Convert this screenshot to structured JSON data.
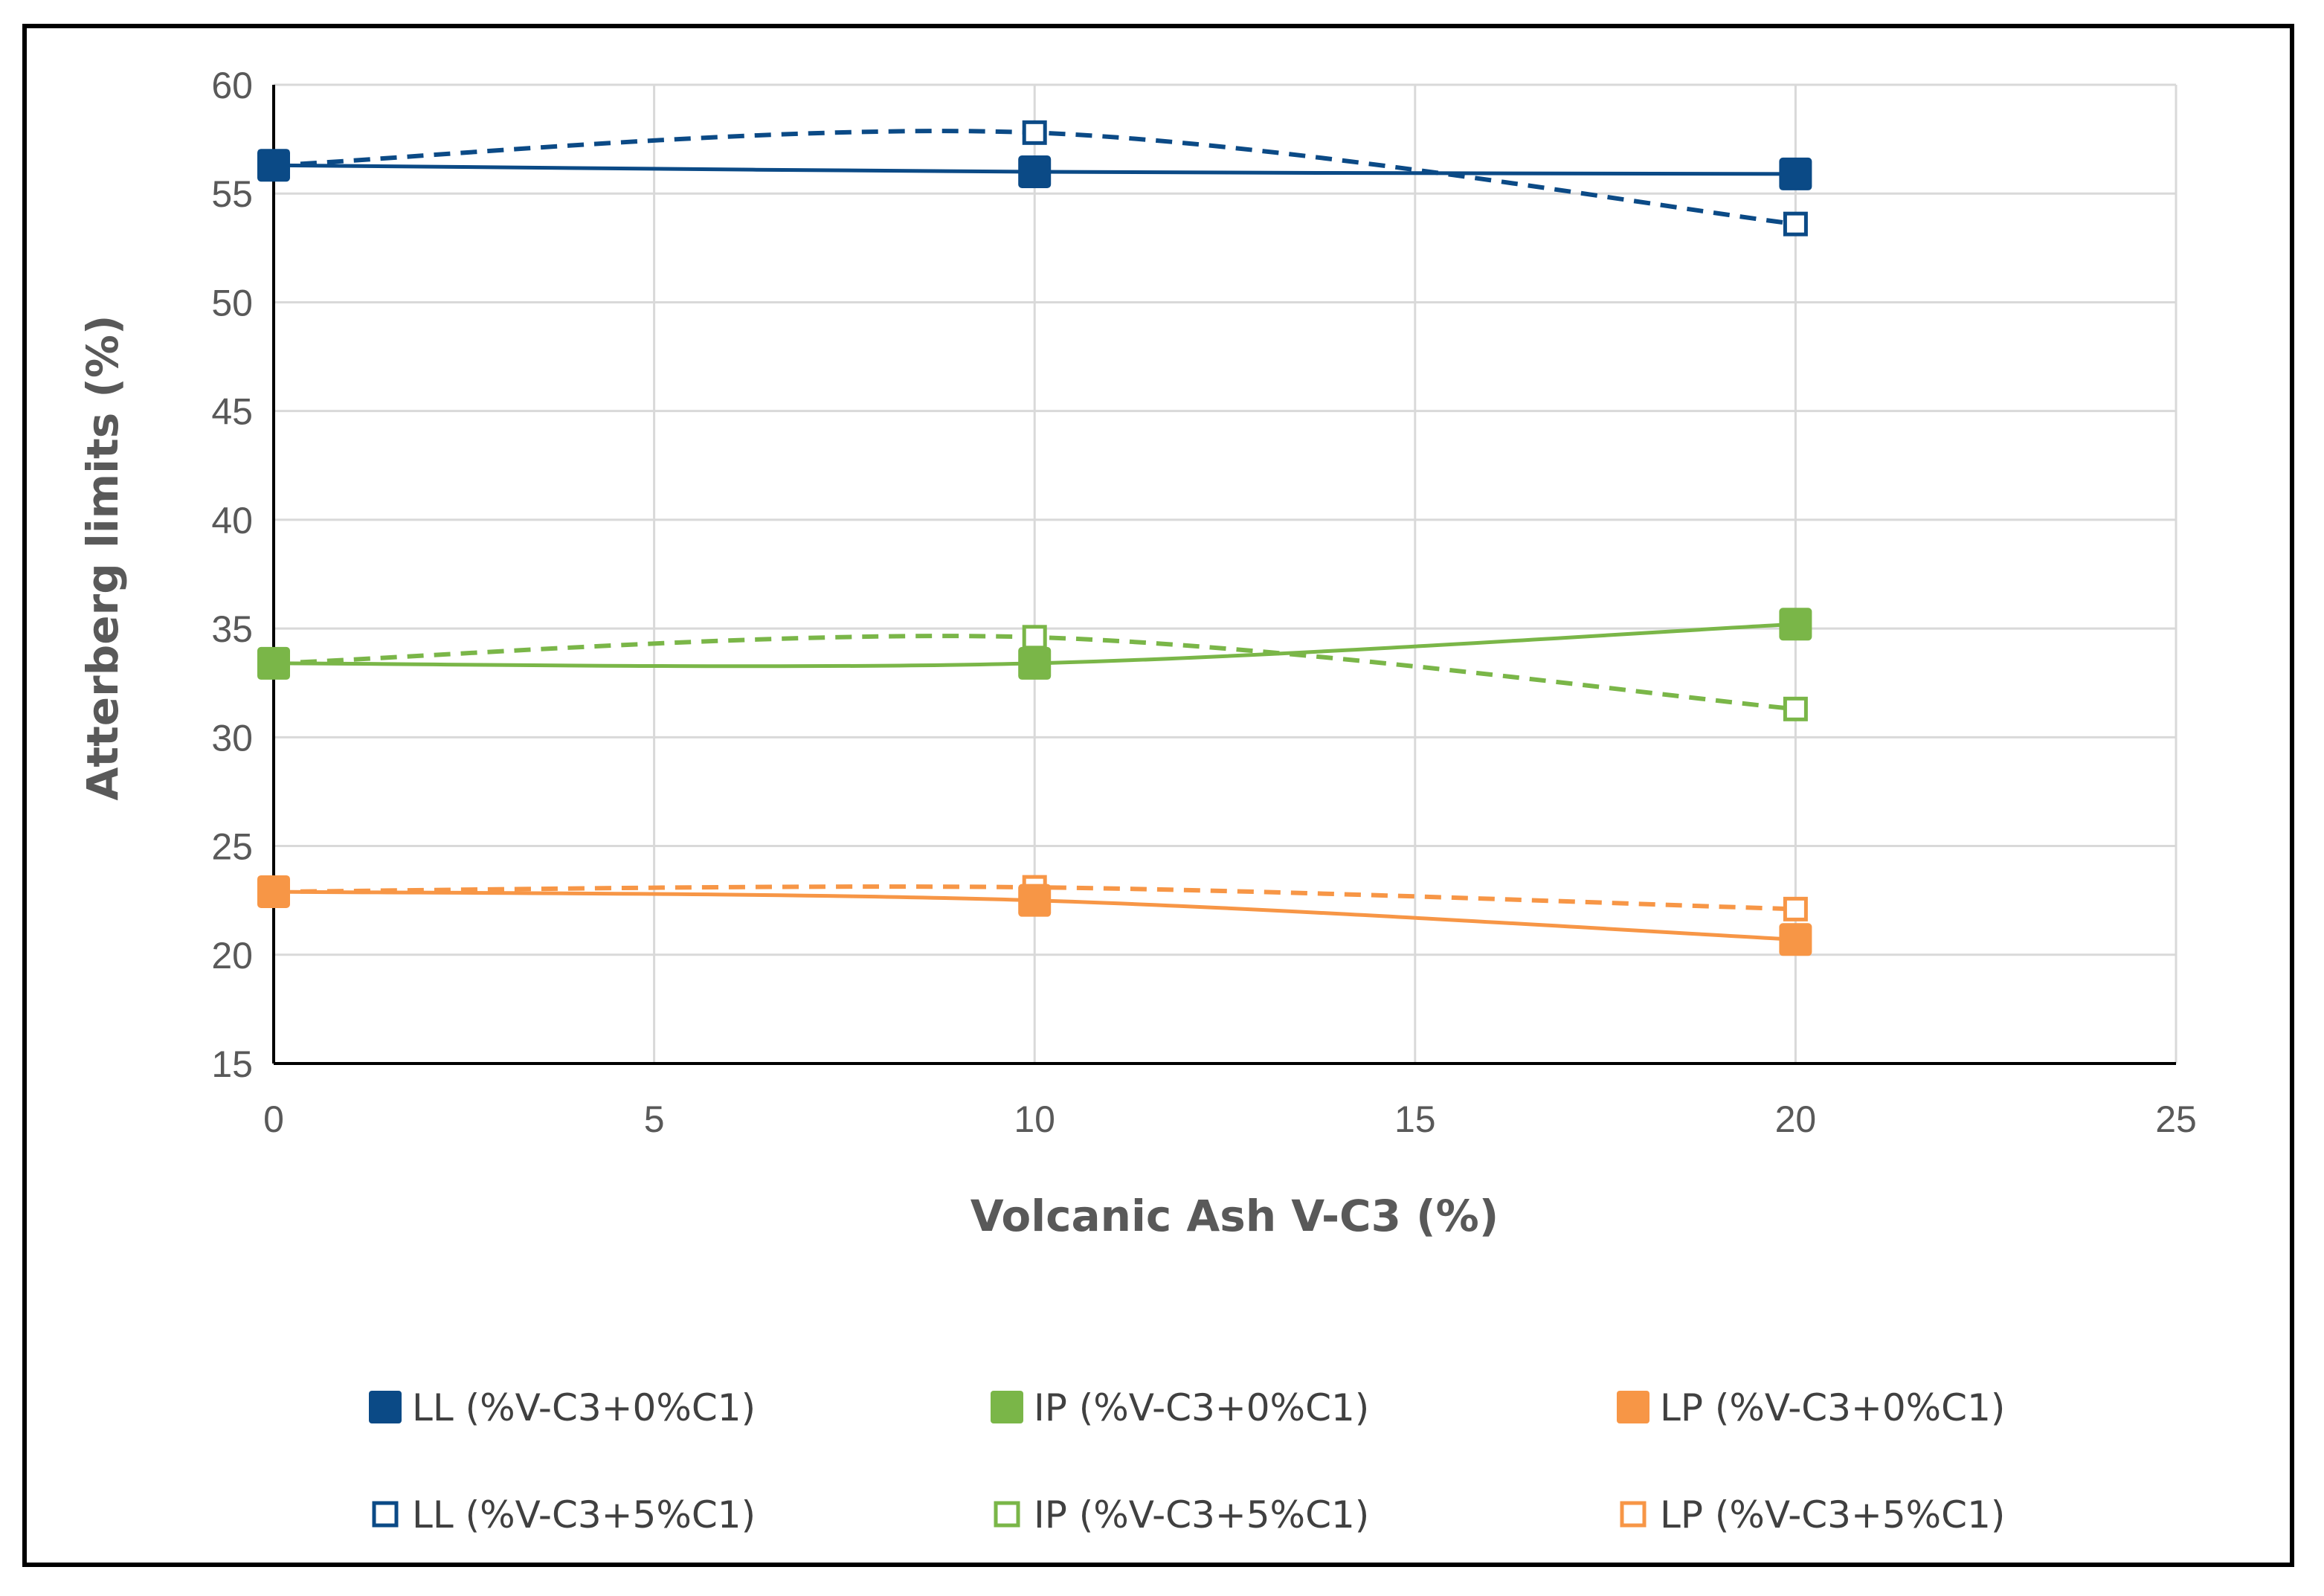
{
  "chart_data": {
    "type": "line",
    "title": "",
    "xlabel": "Volcanic Ash V-C3 (%)",
    "ylabel": "Atterberg limits (%)",
    "xlim": [
      0,
      25
    ],
    "ylim": [
      15,
      60
    ],
    "xticks": [
      0,
      5,
      10,
      15,
      20,
      25
    ],
    "yticks": [
      15,
      20,
      25,
      30,
      35,
      40,
      45,
      50,
      55,
      60
    ],
    "grid": true,
    "legend_position": "bottom",
    "x": [
      0,
      10,
      20
    ],
    "series": [
      {
        "name": "LL  (%V-C3+0%C1)",
        "values": [
          56.3,
          56.0,
          55.9
        ],
        "color": "#0B4A86",
        "dashed": false,
        "filled": true
      },
      {
        "name": "IP  (%V-C3+0%C1)",
        "values": [
          33.4,
          33.4,
          35.2
        ],
        "color": "#7AB648",
        "dashed": false,
        "filled": true
      },
      {
        "name": "LP  (%V-C3+0%C1)",
        "values": [
          22.9,
          22.5,
          20.7
        ],
        "color": "#F79646",
        "dashed": false,
        "filled": true
      },
      {
        "name": "LL  (%V-C3+5%C1)",
        "values": [
          56.3,
          57.8,
          53.6
        ],
        "color": "#0B4A86",
        "dashed": true,
        "filled": false
      },
      {
        "name": "IP (%V-C3+5%C1)",
        "values": [
          33.4,
          34.6,
          31.3
        ],
        "color": "#7AB648",
        "dashed": true,
        "filled": false
      },
      {
        "name": "LP (%V-C3+5%C1)",
        "values": [
          22.9,
          23.1,
          22.1
        ],
        "color": "#F79646",
        "dashed": true,
        "filled": false
      }
    ]
  }
}
